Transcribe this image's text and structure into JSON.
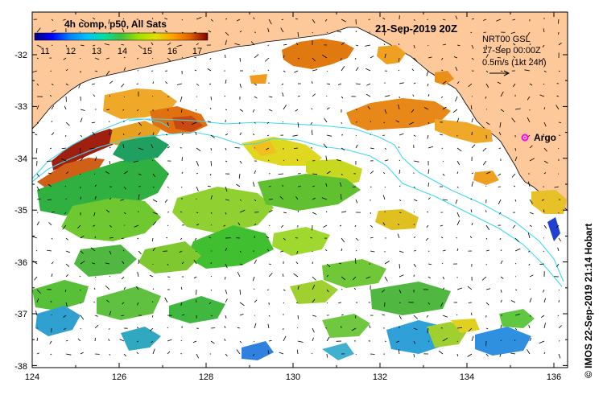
{
  "map": {
    "title_date": "21-Sep-2019 20Z",
    "legend_title": "4h comp, p50, All Sats",
    "colorbar": {
      "ticks": [
        "11",
        "12",
        "13",
        "14",
        "15",
        "16",
        "17"
      ],
      "colors": [
        "#000080",
        "#0000ff",
        "#0080ff",
        "#00c0ff",
        "#00e0a0",
        "#40c040",
        "#a0e000",
        "#e0e000",
        "#ffa000",
        "#e06000",
        "#c03000",
        "#800000"
      ]
    },
    "current_info": {
      "line1": "NRT00 GSL",
      "line2": "17-Sep 00:00Z",
      "line3": "0.5m/s (1kt 24h)"
    },
    "argo_label": "Argo",
    "lon_labels": [
      "124",
      "126",
      "128",
      "130",
      "132",
      "134",
      "136"
    ],
    "lat_labels": [
      "-32",
      "-33",
      "-34",
      "-35",
      "-36",
      "-37",
      "-38"
    ],
    "credit": "© IMOS 22-Sep-2019 21:14 Hobart",
    "colors": {
      "land": "#fdc89a",
      "ocean": "#ffffff",
      "contour": "#40d8f0",
      "argo": "#ff00ff"
    }
  }
}
